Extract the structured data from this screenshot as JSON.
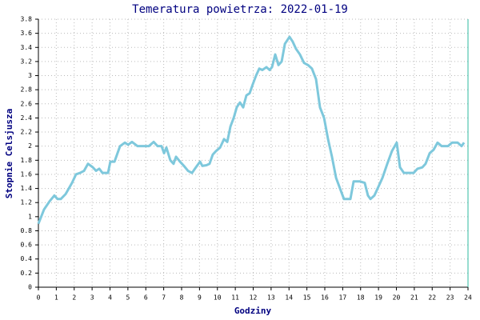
{
  "chart_data": {
    "type": "line",
    "title": "Temeratura powietrza: 2022-01-19",
    "x_label": "Godziny",
    "y_label": "Stopnie Celsjusza",
    "xlim": [
      0,
      24
    ],
    "xticks": [
      0,
      1,
      2,
      3,
      4,
      5,
      6,
      7,
      8,
      9,
      10,
      11,
      12,
      13,
      14,
      15,
      16,
      17,
      18,
      19,
      20,
      21,
      22,
      23,
      24
    ],
    "ylim": [
      0,
      3.8
    ],
    "yticks": [
      0,
      0.2,
      0.4,
      0.6,
      0.8,
      1,
      1.2,
      1.4,
      1.6,
      1.8,
      2,
      2.2,
      2.4,
      2.6,
      2.8,
      3,
      3.2,
      3.4,
      3.6,
      3.8
    ],
    "grid": true,
    "series": [
      {
        "color": "#7ec8dc",
        "x": [
          0,
          0.31,
          0.63,
          0.89,
          1.07,
          1.25,
          1.52,
          1.88,
          2.1,
          2.32,
          2.55,
          2.77,
          3.04,
          3.22,
          3.4,
          3.58,
          3.89,
          4.02,
          4.25,
          4.56,
          4.83,
          5.01,
          5.23,
          5.54,
          5.9,
          6.17,
          6.44,
          6.66,
          6.88,
          7.02,
          7.15,
          7.37,
          7.55,
          7.69,
          7.91,
          8.13,
          8.36,
          8.58,
          8.8,
          9.03,
          9.16,
          9.39,
          9.56,
          9.74,
          9.92,
          10.15,
          10.37,
          10.55,
          10.73,
          10.91,
          11.08,
          11.26,
          11.44,
          11.62,
          11.8,
          11.98,
          12.16,
          12.34,
          12.51,
          12.74,
          12.92,
          13.05,
          13.23,
          13.41,
          13.59,
          13.77,
          14.03,
          14.21,
          14.39,
          14.61,
          14.84,
          15.06,
          15.28,
          15.51,
          15.73,
          15.96,
          16.18,
          16.4,
          16.63,
          16.85,
          17.07,
          17.43,
          17.61,
          17.97,
          18.23,
          18.41,
          18.55,
          18.77,
          18.95,
          19.22,
          19.49,
          19.75,
          20.02,
          20.2,
          20.42,
          20.65,
          20.96,
          21.18,
          21.45,
          21.63,
          21.86,
          22.08,
          22.3,
          22.53,
          22.88,
          23.11,
          23.42,
          23.64,
          23.78
        ],
        "values": [
          0.9,
          1.1,
          1.22,
          1.3,
          1.25,
          1.25,
          1.32,
          1.48,
          1.6,
          1.62,
          1.65,
          1.75,
          1.7,
          1.65,
          1.68,
          1.62,
          1.62,
          1.78,
          1.78,
          2.0,
          2.05,
          2.02,
          2.06,
          2.0,
          2.0,
          2.0,
          2.06,
          2.0,
          2.0,
          1.9,
          1.98,
          1.8,
          1.75,
          1.85,
          1.78,
          1.72,
          1.65,
          1.62,
          1.7,
          1.78,
          1.72,
          1.73,
          1.75,
          1.88,
          1.93,
          1.98,
          2.1,
          2.06,
          2.28,
          2.4,
          2.55,
          2.62,
          2.55,
          2.72,
          2.75,
          2.88,
          3.0,
          3.1,
          3.08,
          3.12,
          3.08,
          3.12,
          3.3,
          3.15,
          3.2,
          3.45,
          3.55,
          3.48,
          3.38,
          3.3,
          3.18,
          3.15,
          3.1,
          2.95,
          2.55,
          2.4,
          2.1,
          1.85,
          1.55,
          1.4,
          1.25,
          1.25,
          1.5,
          1.5,
          1.48,
          1.3,
          1.25,
          1.3,
          1.4,
          1.55,
          1.75,
          1.93,
          2.05,
          1.7,
          1.62,
          1.62,
          1.62,
          1.68,
          1.7,
          1.75,
          1.9,
          1.95,
          2.05,
          2.0,
          2.0,
          2.05,
          2.05,
          2.0,
          2.05
        ]
      }
    ]
  }
}
